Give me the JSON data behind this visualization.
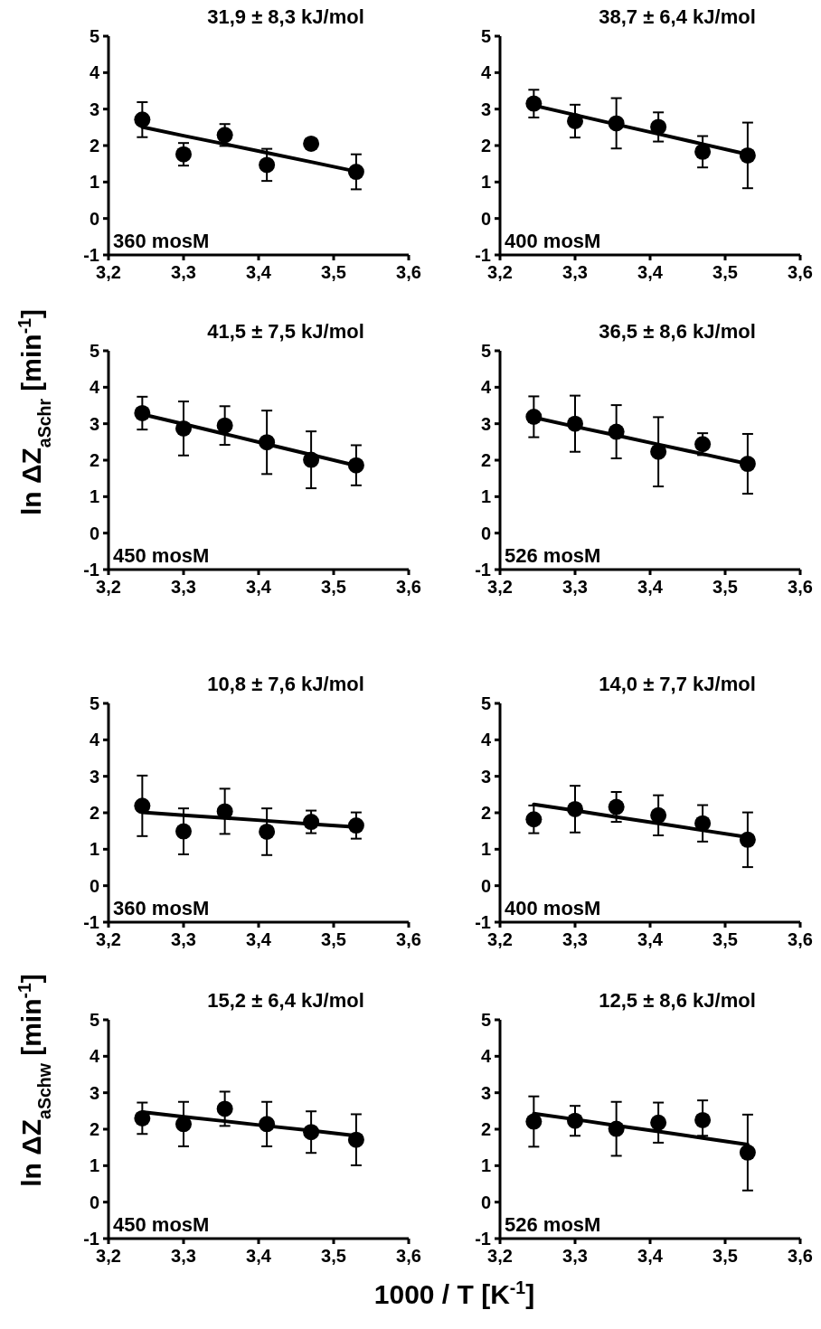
{
  "chart_data": [
    {
      "type": "scatter",
      "title": "31,9 ± 8,3 kJ/mol",
      "ylabel": "ln ΔZ$_{aSchr}$ [min$^{-1}$]",
      "annotations": [
        "360 mosM"
      ],
      "x": [
        3.245,
        3.3,
        3.355,
        3.411,
        3.47,
        3.53
      ],
      "xlim": [
        3.2,
        3.6
      ],
      "xticks": [
        {
          "value": 3.2,
          "label": "3,2"
        },
        {
          "value": 3.3,
          "label": "3,3"
        },
        {
          "value": 3.4,
          "label": "3,4"
        },
        {
          "value": 3.5,
          "label": "3,5"
        },
        {
          "value": 3.6,
          "label": "3,6"
        }
      ],
      "ylim": [
        -1,
        5
      ],
      "yticks": [
        -1,
        0,
        1,
        2,
        3,
        4,
        5
      ],
      "series": [
        {
          "type": "scatter",
          "marker": "circle",
          "color": "#000000",
          "values": [
            2.71,
            1.76,
            2.29,
            1.47,
            2.05,
            1.28
          ],
          "errors": [
            0.48,
            0.31,
            0.3,
            0.44,
            0.1,
            0.48
          ]
        },
        {
          "type": "line",
          "marker": "none",
          "color": "#000000",
          "values": [
            2.51,
            2.27,
            2.04,
            1.8,
            1.55,
            1.29
          ]
        }
      ]
    },
    {
      "type": "scatter",
      "title": "38,7 ± 6,4 kJ/mol",
      "annotations": [
        "400 mosM"
      ],
      "x": [
        3.245,
        3.3,
        3.355,
        3.411,
        3.47,
        3.53
      ],
      "xlim": [
        3.2,
        3.6
      ],
      "xticks": [
        {
          "value": 3.2,
          "label": "3,2"
        },
        {
          "value": 3.3,
          "label": "3,3"
        },
        {
          "value": 3.4,
          "label": "3,4"
        },
        {
          "value": 3.5,
          "label": "3,5"
        },
        {
          "value": 3.6,
          "label": "3,6"
        }
      ],
      "ylim": [
        -1,
        5
      ],
      "yticks": [
        -1,
        0,
        1,
        2,
        3,
        4,
        5
      ],
      "series": [
        {
          "type": "scatter",
          "marker": "circle",
          "color": "#000000",
          "values": [
            3.15,
            2.67,
            2.61,
            2.51,
            1.83,
            1.73
          ],
          "errors": [
            0.38,
            0.45,
            0.69,
            0.4,
            0.43,
            0.9
          ]
        },
        {
          "type": "line",
          "marker": "none",
          "color": "#000000",
          "values": [
            3.1,
            2.84,
            2.58,
            2.32,
            2.04,
            1.76
          ]
        }
      ]
    },
    {
      "type": "scatter",
      "title": "41,5 ± 7,5 kJ/mol",
      "annotations": [
        "450 mosM"
      ],
      "x": [
        3.245,
        3.3,
        3.355,
        3.411,
        3.47,
        3.53
      ],
      "xlim": [
        3.2,
        3.6
      ],
      "xticks": [
        {
          "value": 3.2,
          "label": "3,2"
        },
        {
          "value": 3.3,
          "label": "3,3"
        },
        {
          "value": 3.4,
          "label": "3,4"
        },
        {
          "value": 3.5,
          "label": "3,5"
        },
        {
          "value": 3.6,
          "label": "3,6"
        }
      ],
      "ylim": [
        -1,
        5
      ],
      "yticks": [
        -1,
        0,
        1,
        2,
        3,
        4,
        5
      ],
      "series": [
        {
          "type": "scatter",
          "marker": "circle",
          "color": "#000000",
          "values": [
            3.29,
            2.87,
            2.95,
            2.49,
            2.01,
            1.86
          ],
          "errors": [
            0.45,
            0.74,
            0.53,
            0.87,
            0.78,
            0.55
          ]
        },
        {
          "type": "line",
          "marker": "none",
          "color": "#000000",
          "values": [
            3.26,
            2.99,
            2.72,
            2.44,
            2.15,
            1.85
          ]
        }
      ]
    },
    {
      "type": "scatter",
      "title": "36,5 ± 8,6 kJ/mol",
      "annotations": [
        "526 mosM"
      ],
      "x": [
        3.245,
        3.3,
        3.355,
        3.411,
        3.47,
        3.53
      ],
      "xlim": [
        3.2,
        3.6
      ],
      "xticks": [
        {
          "value": 3.2,
          "label": "3,2"
        },
        {
          "value": 3.3,
          "label": "3,3"
        },
        {
          "value": 3.4,
          "label": "3,4"
        },
        {
          "value": 3.5,
          "label": "3,5"
        },
        {
          "value": 3.6,
          "label": "3,6"
        }
      ],
      "ylim": [
        -1,
        5
      ],
      "yticks": [
        -1,
        0,
        1,
        2,
        3,
        4,
        5
      ],
      "series": [
        {
          "type": "scatter",
          "marker": "circle",
          "color": "#000000",
          "values": [
            3.19,
            3.0,
            2.78,
            2.23,
            2.44,
            1.9
          ],
          "errors": [
            0.56,
            0.77,
            0.73,
            0.95,
            0.3,
            0.82
          ]
        },
        {
          "type": "line",
          "marker": "none",
          "color": "#000000",
          "values": [
            3.17,
            2.92,
            2.68,
            2.43,
            2.17,
            1.9
          ]
        }
      ]
    },
    {
      "type": "scatter",
      "title": "10,8 ± 7,6 kJ/mol",
      "ylabel": "ln ΔZ$_{aSchw}$ [min$^{-1}$]",
      "annotations": [
        "360 mosM"
      ],
      "x": [
        3.245,
        3.3,
        3.355,
        3.411,
        3.47,
        3.53
      ],
      "xlim": [
        3.2,
        3.6
      ],
      "xticks": [
        {
          "value": 3.2,
          "label": "3,2"
        },
        {
          "value": 3.3,
          "label": "3,3"
        },
        {
          "value": 3.4,
          "label": "3,4"
        },
        {
          "value": 3.5,
          "label": "3,5"
        },
        {
          "value": 3.6,
          "label": "3,6"
        }
      ],
      "ylim": [
        -1,
        5
      ],
      "yticks": [
        -1,
        0,
        1,
        2,
        3,
        4,
        5
      ],
      "series": [
        {
          "type": "scatter",
          "marker": "circle",
          "color": "#000000",
          "values": [
            2.19,
            1.49,
            2.04,
            1.48,
            1.75,
            1.65
          ],
          "errors": [
            0.83,
            0.63,
            0.62,
            0.64,
            0.31,
            0.36
          ]
        },
        {
          "type": "line",
          "marker": "none",
          "color": "#000000",
          "values": [
            2.01,
            1.93,
            1.86,
            1.78,
            1.69,
            1.61
          ]
        }
      ]
    },
    {
      "type": "scatter",
      "title": "14,0 ± 7,7 kJ/mol",
      "annotations": [
        "400 mosM"
      ],
      "x": [
        3.245,
        3.3,
        3.355,
        3.411,
        3.47,
        3.53
      ],
      "xlim": [
        3.2,
        3.6
      ],
      "xticks": [
        {
          "value": 3.2,
          "label": "3,2"
        },
        {
          "value": 3.3,
          "label": "3,3"
        },
        {
          "value": 3.4,
          "label": "3,4"
        },
        {
          "value": 3.5,
          "label": "3,5"
        },
        {
          "value": 3.6,
          "label": "3,6"
        }
      ],
      "ylim": [
        -1,
        5
      ],
      "yticks": [
        -1,
        0,
        1,
        2,
        3,
        4,
        5
      ],
      "series": [
        {
          "type": "scatter",
          "marker": "circle",
          "color": "#000000",
          "values": [
            1.82,
            2.1,
            2.16,
            1.93,
            1.71,
            1.26
          ],
          "errors": [
            0.38,
            0.64,
            0.41,
            0.55,
            0.5,
            0.75
          ]
        },
        {
          "type": "line",
          "marker": "none",
          "color": "#000000",
          "values": [
            2.23,
            2.06,
            1.88,
            1.71,
            1.52,
            1.33
          ]
        }
      ]
    },
    {
      "type": "scatter",
      "title": "15,2 ± 6,4 kJ/mol",
      "xlabel": "1000 / T [K$^{-1}$]",
      "annotations": [
        "450 mosM"
      ],
      "x": [
        3.245,
        3.3,
        3.355,
        3.411,
        3.47,
        3.53
      ],
      "xlim": [
        3.2,
        3.6
      ],
      "xticks": [
        {
          "value": 3.2,
          "label": "3,2"
        },
        {
          "value": 3.3,
          "label": "3,3"
        },
        {
          "value": 3.4,
          "label": "3,4"
        },
        {
          "value": 3.5,
          "label": "3,5"
        },
        {
          "value": 3.6,
          "label": "3,6"
        }
      ],
      "ylim": [
        -1,
        5
      ],
      "yticks": [
        -1,
        0,
        1,
        2,
        3,
        4,
        5
      ],
      "series": [
        {
          "type": "scatter",
          "marker": "circle",
          "color": "#000000",
          "values": [
            2.3,
            2.14,
            2.56,
            2.14,
            1.92,
            1.71
          ],
          "errors": [
            0.43,
            0.61,
            0.47,
            0.61,
            0.57,
            0.7
          ]
        },
        {
          "type": "line",
          "marker": "none",
          "color": "#000000",
          "values": [
            2.47,
            2.34,
            2.22,
            2.09,
            1.96,
            1.82
          ]
        }
      ]
    },
    {
      "type": "scatter",
      "title": "12,5 ± 8,6 kJ/mol",
      "annotations": [
        "526 mosM"
      ],
      "x": [
        3.245,
        3.3,
        3.355,
        3.411,
        3.47,
        3.53
      ],
      "xlim": [
        3.2,
        3.6
      ],
      "xticks": [
        {
          "value": 3.2,
          "label": "3,2"
        },
        {
          "value": 3.3,
          "label": "3,3"
        },
        {
          "value": 3.4,
          "label": "3,4"
        },
        {
          "value": 3.5,
          "label": "3,5"
        },
        {
          "value": 3.6,
          "label": "3,6"
        }
      ],
      "ylim": [
        -1,
        5
      ],
      "yticks": [
        -1,
        0,
        1,
        2,
        3,
        4,
        5
      ],
      "series": [
        {
          "type": "scatter",
          "marker": "circle",
          "color": "#000000",
          "values": [
            2.21,
            2.23,
            2.01,
            2.18,
            2.25,
            1.36
          ],
          "errors": [
            0.69,
            0.41,
            0.74,
            0.55,
            [
              1.82,
              2.79
            ],
            1.04
          ]
        },
        {
          "type": "line",
          "marker": "none",
          "color": "#000000",
          "values": [
            2.43,
            2.27,
            2.1,
            1.94,
            1.76,
            1.58
          ]
        }
      ]
    }
  ]
}
